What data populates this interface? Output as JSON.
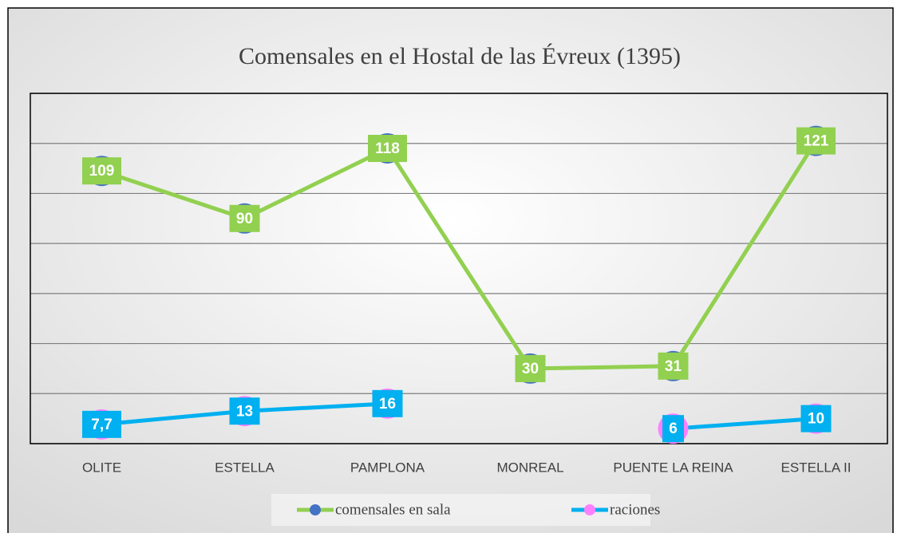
{
  "chart_data": {
    "type": "line",
    "title": "Comensales en el Hostal de las Évreux (1395)",
    "categories": [
      "OLITE",
      "ESTELLA",
      "PAMPLONA",
      "MONREAL",
      "PUENTE LA REINA",
      "ESTELLA II"
    ],
    "series": [
      {
        "name": "comensales en sala",
        "color": "#92d050",
        "marker_color": "#4472c4",
        "values": [
          109,
          90,
          118,
          30,
          31,
          121
        ]
      },
      {
        "name": "raciones",
        "color": "#00b0f0",
        "marker_color": "#ff80ff",
        "values": [
          7.7,
          13,
          16,
          null,
          6,
          10
        ],
        "value_labels": [
          "7,7",
          "13",
          "16",
          null,
          "6",
          "10"
        ]
      }
    ],
    "ylim": [
      0,
      140
    ],
    "yticks": [
      0,
      20,
      40,
      60,
      80,
      100,
      120,
      140
    ],
    "grid": true,
    "legend": "bottom"
  }
}
